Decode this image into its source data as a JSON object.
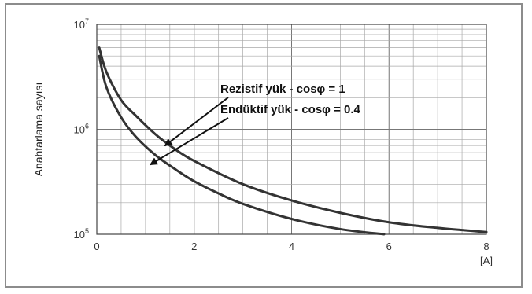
{
  "chart_data": {
    "type": "line",
    "ylabel": "Anahtarlama sayısı",
    "xlabel": "",
    "x_unit": "[A]",
    "xlim": [
      0,
      8
    ],
    "ylim": [
      100000,
      10000000
    ],
    "y_scale": "log",
    "grid": true,
    "x_ticks": [
      "0",
      "2",
      "4",
      "6",
      "8"
    ],
    "y_ticks": [
      {
        "value": 100000,
        "mantissa": "10",
        "exp": "5"
      },
      {
        "value": 1000000,
        "mantissa": "10",
        "exp": "6"
      },
      {
        "value": 10000000,
        "mantissa": "10",
        "exp": "7"
      }
    ],
    "series": [
      {
        "name": "Rezistif yük - cosφ = 1",
        "color": "#333333",
        "x": [
          0.05,
          0.2,
          0.5,
          0.8,
          1.2,
          1.6,
          2.0,
          3.0,
          4.0,
          5.0,
          6.0,
          7.0,
          8.0
        ],
        "y": [
          6000000,
          3500000,
          1900000,
          1350000,
          900000,
          650000,
          500000,
          300000,
          210000,
          160000,
          130000,
          115000,
          105000
        ]
      },
      {
        "name": "Endüktif yük - cosφ = 0.4",
        "color": "#333333",
        "x": [
          0.05,
          0.2,
          0.5,
          0.8,
          1.2,
          1.6,
          2.0,
          2.5,
          3.0,
          4.0,
          5.0,
          5.9
        ],
        "y": [
          5000000,
          2500000,
          1300000,
          850000,
          570000,
          420000,
          320000,
          245000,
          195000,
          140000,
          112000,
          100000
        ]
      }
    ],
    "annotations": [
      {
        "text": "Rezistif yük - cosφ = 1",
        "x_data": 1.3,
        "y_data": 650000
      },
      {
        "text": "Endüktif yük - cosφ = 0.4",
        "x_data": 1.0,
        "y_data": 430000
      }
    ]
  }
}
